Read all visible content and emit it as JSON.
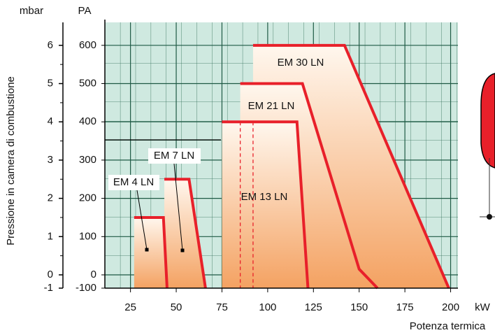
{
  "chart_data": {
    "type": "area",
    "x_label": "Potenza termica",
    "x_unit": "kW",
    "y_label": "Pressione in camera di combustione",
    "y_unit": "PA",
    "y2_unit": "mbar",
    "xlim": [
      11,
      204
    ],
    "xticks": [
      25,
      50,
      75,
      100,
      125,
      150,
      175,
      200
    ],
    "ylim": [
      -100,
      660
    ],
    "yticks": [
      -100,
      0,
      100,
      200,
      300,
      400,
      500,
      600
    ],
    "y2lim": [
      -1,
      6.6
    ],
    "y2ticks": [
      -1,
      0,
      1,
      2,
      3,
      4,
      5,
      6
    ],
    "grid": true,
    "series": [
      {
        "name": "EM 30 LN",
        "color": "#e8202a",
        "x": [
          92,
          142,
          199
        ],
        "y": [
          600,
          600,
          -100
        ]
      },
      {
        "name": "EM 21 LN",
        "color": "#e8202a",
        "x": [
          85,
          119,
          150,
          160
        ],
        "y": [
          500,
          500,
          15,
          -100
        ]
      },
      {
        "name": "EM 13 LN",
        "color": "#e8202a",
        "x": [
          75,
          116,
          122
        ],
        "y": [
          400,
          400,
          -100
        ]
      },
      {
        "name": "EM 7 LN",
        "color": "#e8202a",
        "x": [
          43.5,
          57,
          66
        ],
        "y": [
          250,
          250,
          -100
        ]
      },
      {
        "name": "EM 4 LN",
        "color": "#e8202a",
        "x": [
          27,
          43,
          45
        ],
        "y": [
          150,
          150,
          -100
        ]
      }
    ]
  }
}
